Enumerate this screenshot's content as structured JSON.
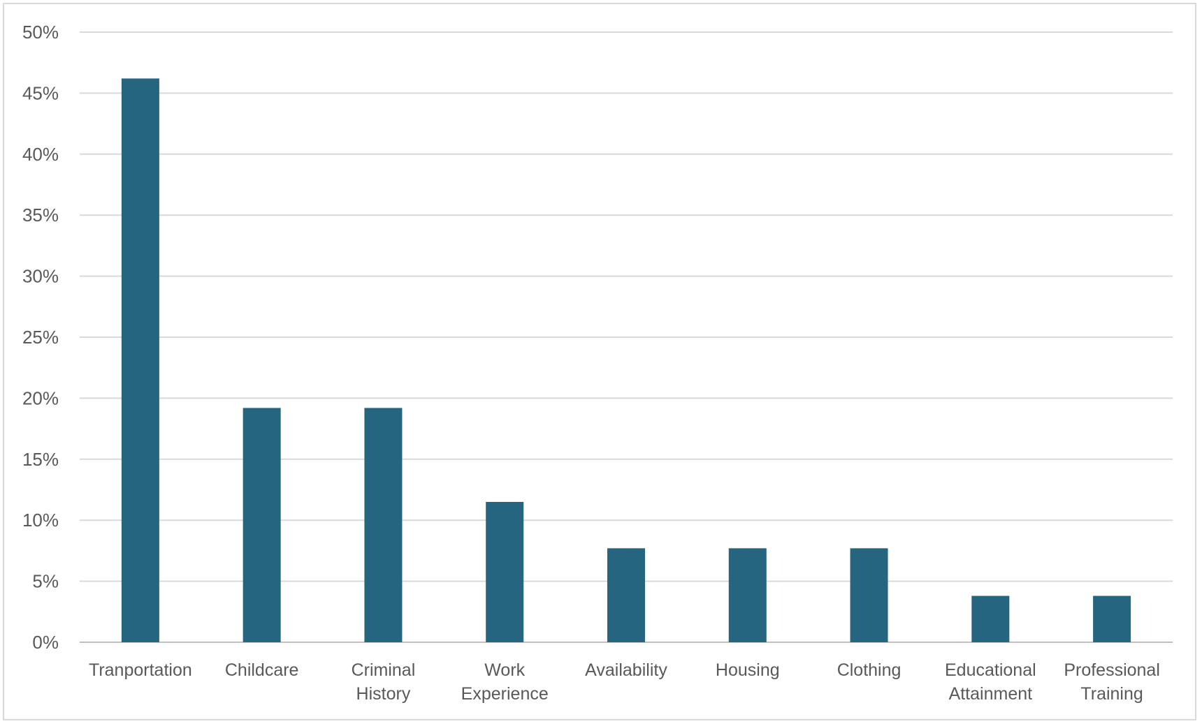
{
  "chart_data": {
    "type": "bar",
    "title": "",
    "xlabel": "",
    "ylabel": "",
    "ylim": [
      0,
      50
    ],
    "ytick_step": 5,
    "ytick_format": "percent",
    "grid": true,
    "legend": "none",
    "bar_color": "#25657f",
    "categories": [
      [
        "Tranportation"
      ],
      [
        "Childcare"
      ],
      [
        "Criminal",
        "History"
      ],
      [
        "Work",
        "Experience"
      ],
      [
        "Availability"
      ],
      [
        "Housing"
      ],
      [
        "Clothing"
      ],
      [
        "Educational",
        "Attainment"
      ],
      [
        "Professional",
        "Training"
      ]
    ],
    "values": [
      46.2,
      19.2,
      19.2,
      11.5,
      7.7,
      7.7,
      7.7,
      3.8,
      3.8
    ]
  }
}
